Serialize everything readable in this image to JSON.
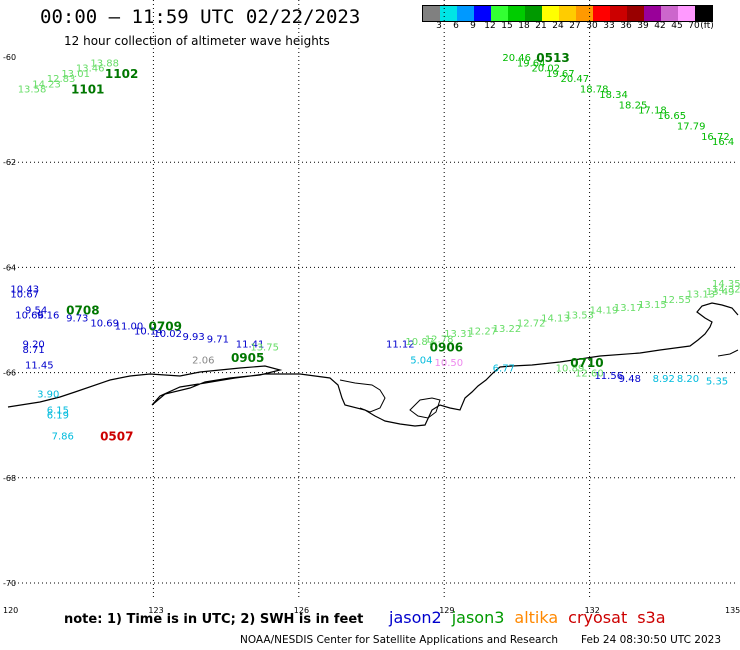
{
  "title": "00:00 – 11:59 UTC 02/22/2023",
  "subtitle": "12 hour collection of altimeter wave heights",
  "legend": {
    "colors": [
      "#808080",
      "#00e5e5",
      "#0099ff",
      "#0000ff",
      "#33ff33",
      "#00cc00",
      "#009900",
      "#ffff00",
      "#ffcc00",
      "#ff9900",
      "#ff0000",
      "#cc0000",
      "#990000",
      "#990099",
      "#cc66cc",
      "#ff99ff",
      "#000000"
    ],
    "ticks": [
      "3",
      "6",
      "9",
      "12",
      "15",
      "18",
      "21",
      "24",
      "27",
      "30",
      "33",
      "36",
      "39",
      "42",
      "45",
      "70",
      "(ft)"
    ]
  },
  "axes": {
    "lon_labels": [
      "120",
      "123",
      "126",
      "129",
      "132",
      "135"
    ],
    "lat_labels": [
      "-60",
      "-62",
      "-64",
      "-66",
      "-68",
      "-70"
    ]
  },
  "pass_ids": [
    {
      "text": "1101",
      "color": "#007700",
      "lon": 121.3,
      "lat": -60.6
    },
    {
      "text": "1102",
      "color": "#007700",
      "lon": 122.0,
      "lat": -60.3
    },
    {
      "text": "0513",
      "color": "#007700",
      "lon": 130.9,
      "lat": -60.0
    },
    {
      "text": "0708",
      "color": "#007700",
      "lon": 121.2,
      "lat": -64.8
    },
    {
      "text": "0709",
      "color": "#007700",
      "lon": 122.9,
      "lat": -65.1
    },
    {
      "text": "0905",
      "color": "#007700",
      "lon": 124.6,
      "lat": -65.7
    },
    {
      "text": "0906",
      "color": "#007700",
      "lon": 128.7,
      "lat": -65.5
    },
    {
      "text": "0710",
      "color": "#007700",
      "lon": 131.6,
      "lat": -65.8
    },
    {
      "text": "0507",
      "color": "#cc0000",
      "lon": 121.9,
      "lat": -67.2
    }
  ],
  "groups": [
    {
      "color": "#66dd66",
      "points": [
        {
          "t": "13.58",
          "lon": 120.2,
          "lat": -60.6
        },
        {
          "t": "14.23",
          "lon": 120.5,
          "lat": -60.5
        },
        {
          "t": "12.83",
          "lon": 120.8,
          "lat": -60.4
        },
        {
          "t": "13.01",
          "lon": 121.1,
          "lat": -60.3
        },
        {
          "t": "13.46",
          "lon": 121.4,
          "lat": -60.2
        },
        {
          "t": "13.88",
          "lon": 121.7,
          "lat": -60.1
        }
      ]
    },
    {
      "color": "#00bb00",
      "points": [
        {
          "t": "20.46",
          "lon": 130.2,
          "lat": -60.0
        },
        {
          "t": "19.64",
          "lon": 130.5,
          "lat": -60.1
        },
        {
          "t": "20.02",
          "lon": 130.8,
          "lat": -60.2
        },
        {
          "t": "19.67",
          "lon": 131.1,
          "lat": -60.3
        },
        {
          "t": "20.47",
          "lon": 131.4,
          "lat": -60.4
        },
        {
          "t": "18.78",
          "lon": 131.8,
          "lat": -60.6
        },
        {
          "t": "18.34",
          "lon": 132.2,
          "lat": -60.7
        },
        {
          "t": "18.25",
          "lon": 132.6,
          "lat": -60.9
        },
        {
          "t": "17.18",
          "lon": 133.0,
          "lat": -61.0
        },
        {
          "t": "16.65",
          "lon": 133.4,
          "lat": -61.1
        },
        {
          "t": "17.79",
          "lon": 133.8,
          "lat": -61.3
        },
        {
          "t": "16.72",
          "lon": 134.3,
          "lat": -61.5
        },
        {
          "t": "16.4",
          "lon": 134.8,
          "lat": -61.6
        }
      ]
    },
    {
      "color": "#0000cc",
      "points": [
        {
          "t": "10.43",
          "lon": 120.05,
          "lat": -64.4
        },
        {
          "t": "10.67",
          "lon": 120.05,
          "lat": -64.5
        },
        {
          "t": "10.66",
          "lon": 120.15,
          "lat": -64.9
        },
        {
          "t": "9.54",
          "lon": 120.35,
          "lat": -64.8
        },
        {
          "t": "9.16",
          "lon": 120.6,
          "lat": -64.9
        },
        {
          "t": "9.73",
          "lon": 121.2,
          "lat": -64.95
        },
        {
          "t": "10.69",
          "lon": 121.7,
          "lat": -65.05
        },
        {
          "t": "11.00",
          "lon": 122.2,
          "lat": -65.1
        },
        {
          "t": "10.14",
          "lon": 122.6,
          "lat": -65.2
        },
        {
          "t": "10.02",
          "lon": 123.0,
          "lat": -65.25
        },
        {
          "t": "9.93",
          "lon": 123.6,
          "lat": -65.3
        },
        {
          "t": "9.71",
          "lon": 124.1,
          "lat": -65.35
        },
        {
          "t": "11.41",
          "lon": 124.7,
          "lat": -65.45
        },
        {
          "t": "9.20",
          "lon": 120.3,
          "lat": -65.45
        },
        {
          "t": "8.71",
          "lon": 120.3,
          "lat": -65.55
        },
        {
          "t": "11.45",
          "lon": 120.35,
          "lat": -65.85
        },
        {
          "t": "11.12",
          "lon": 127.8,
          "lat": -65.45
        },
        {
          "t": "11.56",
          "lon": 132.1,
          "lat": -66.05
        },
        {
          "t": "9.48",
          "lon": 132.6,
          "lat": -66.1
        }
      ]
    },
    {
      "color": "#66dd66",
      "points": [
        {
          "t": "13.75",
          "lon": 125.0,
          "lat": -65.5
        },
        {
          "t": "10.87",
          "lon": 128.2,
          "lat": -65.4
        },
        {
          "t": "12.78",
          "lon": 128.6,
          "lat": -65.35
        },
        {
          "t": "13.31",
          "lon": 129.0,
          "lat": -65.25
        },
        {
          "t": "12.27",
          "lon": 129.5,
          "lat": -65.2
        },
        {
          "t": "13.22",
          "lon": 130.0,
          "lat": -65.15
        },
        {
          "t": "12.72",
          "lon": 130.5,
          "lat": -65.05
        },
        {
          "t": "14.13",
          "lon": 131.0,
          "lat": -64.95
        },
        {
          "t": "13.53",
          "lon": 131.5,
          "lat": -64.9
        },
        {
          "t": "14.19",
          "lon": 132.0,
          "lat": -64.8
        },
        {
          "t": "13.17",
          "lon": 132.5,
          "lat": -64.75
        },
        {
          "t": "13.15",
          "lon": 133.0,
          "lat": -64.7
        },
        {
          "t": "12.55",
          "lon": 133.5,
          "lat": -64.6
        },
        {
          "t": "13.13",
          "lon": 134.0,
          "lat": -64.5
        },
        {
          "t": "13.49",
          "lon": 134.4,
          "lat": -64.45
        },
        {
          "t": "14.32",
          "lon": 134.8,
          "lat": -64.4
        },
        {
          "t": "14.35",
          "lon": 135.1,
          "lat": -64.3
        },
        {
          "t": "10.89",
          "lon": 131.3,
          "lat": -65.9
        },
        {
          "t": "12.60",
          "lon": 131.7,
          "lat": -66.0
        }
      ]
    },
    {
      "color": "#00bbdd",
      "points": [
        {
          "t": "5.04",
          "lon": 128.3,
          "lat": -65.75
        },
        {
          "t": "6.77",
          "lon": 130.0,
          "lat": -65.9
        },
        {
          "t": "3.90",
          "lon": 120.6,
          "lat": -66.4
        },
        {
          "t": "6.15",
          "lon": 120.8,
          "lat": -66.7
        },
        {
          "t": "6.19",
          "lon": 120.8,
          "lat": -66.8
        },
        {
          "t": "7.86",
          "lon": 120.9,
          "lat": -67.2
        },
        {
          "t": "8.92",
          "lon": 133.3,
          "lat": -66.1
        },
        {
          "t": "8.20",
          "lon": 133.8,
          "lat": -66.1
        },
        {
          "t": "5.35",
          "lon": 134.4,
          "lat": -66.15
        }
      ]
    },
    {
      "color": "#888888",
      "points": [
        {
          "t": "2.06",
          "lon": 123.8,
          "lat": -65.75
        }
      ]
    },
    {
      "color": "#ee88ee",
      "points": [
        {
          "t": "10.50",
          "lon": 128.8,
          "lat": -65.8
        }
      ]
    }
  ],
  "note": "note:  1) Time is in UTC;  2) SWH is in feet",
  "satellites": [
    {
      "name": "jason2",
      "color": "#0000cc"
    },
    {
      "name": "jason3",
      "color": "#009900"
    },
    {
      "name": "altika",
      "color": "#ff8800"
    },
    {
      "name": "cryosat",
      "color": "#cc0000"
    },
    {
      "name": "s3a",
      "color": "#cc0000"
    }
  ],
  "credit": "NOAA/NESDIS Center for Satellite Applications and Research",
  "credit_time": "Feb 24 08:30:50 UTC 2023"
}
